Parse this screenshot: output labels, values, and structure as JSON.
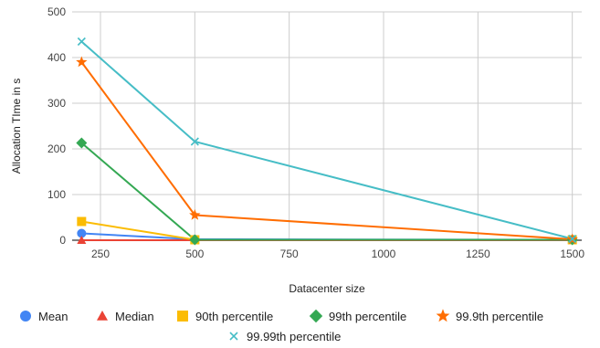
{
  "chart_data": {
    "type": "line",
    "title": "",
    "xlabel": "Datacenter size",
    "ylabel": "Allocation TIme in s",
    "x": [
      200,
      500,
      1500
    ],
    "xlim": [
      175,
      1525
    ],
    "ylim": [
      0,
      500
    ],
    "x_ticks": [
      250,
      500,
      750,
      1000,
      1250,
      1500
    ],
    "y_ticks": [
      0,
      100,
      200,
      300,
      400,
      500
    ],
    "grid": true,
    "legend_position": "bottom",
    "series": [
      {
        "name": "Mean",
        "color": "#4285f4",
        "marker": "circle",
        "values": [
          15,
          2,
          1
        ]
      },
      {
        "name": "Median",
        "color": "#ea4335",
        "marker": "triangle",
        "values": [
          0,
          0,
          0
        ]
      },
      {
        "name": "90th percentile",
        "color": "#fbbc04",
        "marker": "square",
        "values": [
          41,
          1,
          1
        ]
      },
      {
        "name": "99th percentile",
        "color": "#34a853",
        "marker": "diamond",
        "values": [
          213,
          1,
          1
        ]
      },
      {
        "name": "99.9th percentile",
        "color": "#ff6d01",
        "marker": "star",
        "values": [
          390,
          55,
          2
        ]
      },
      {
        "name": "99.99th percentile",
        "color": "#46bdc6",
        "marker": "cross",
        "values": [
          435,
          216,
          3
        ]
      }
    ]
  }
}
